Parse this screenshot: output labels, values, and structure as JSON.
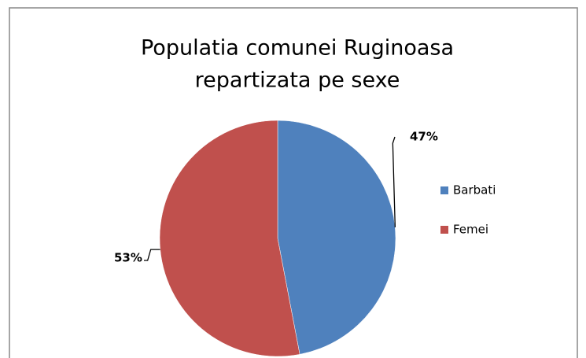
{
  "chart_data": {
    "type": "pie",
    "title": [
      "Populatia comunei Ruginoasa",
      "repartizata pe sexe"
    ],
    "categories": [
      "Barbati",
      "Femei"
    ],
    "values": [
      47,
      53
    ],
    "value_labels": [
      "47%",
      "53%"
    ],
    "colors": [
      "#4f81bd",
      "#c0504d"
    ],
    "legend": "right"
  }
}
